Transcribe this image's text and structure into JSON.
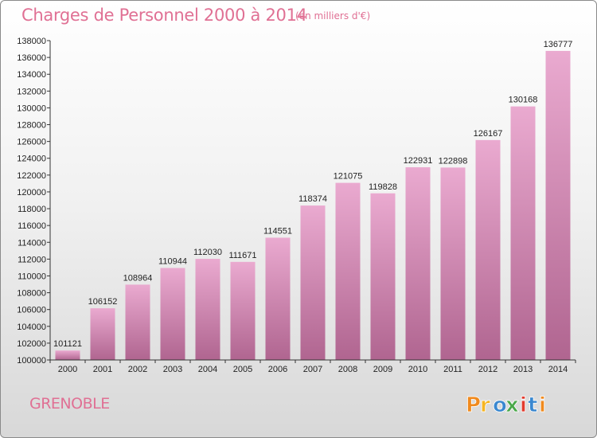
{
  "title": "Charges de Personnel 2000 à 2014",
  "subtitle": "(en milliers d'€)",
  "city": "GRENOBLE",
  "logo_text": "Proxiti",
  "colors": {
    "title": "#e07094",
    "bar_top": "#eaaad0",
    "bar_bottom": "#b06590",
    "logo_letters": [
      "#f08a1e",
      "#f5b521",
      "#3a88d0",
      "#4aa84a",
      "#e23b2e",
      "#3a88d0",
      "#f08a1e"
    ]
  },
  "chart_data": {
    "type": "bar",
    "categories": [
      "2000",
      "2001",
      "2002",
      "2003",
      "2004",
      "2005",
      "2006",
      "2007",
      "2008",
      "2009",
      "2010",
      "2011",
      "2012",
      "2013",
      "2014"
    ],
    "values": [
      101121,
      106152,
      108964,
      110944,
      112030,
      111671,
      114551,
      118374,
      121075,
      119828,
      122931,
      122898,
      126167,
      130168,
      136777
    ],
    "data_labels": [
      "101121",
      "106152",
      "108964",
      "110944",
      "112030",
      "111671",
      "114551",
      "118374",
      "121075",
      "119828",
      "122931",
      "122898",
      "126167",
      "130168",
      "136777"
    ],
    "ylim": [
      100000,
      138000
    ],
    "yticks": [
      "100000",
      "102000",
      "104000",
      "106000",
      "108000",
      "110000",
      "112000",
      "114000",
      "116000",
      "118000",
      "120000",
      "122000",
      "124000",
      "126000",
      "128000",
      "130000",
      "132000",
      "134000",
      "136000",
      "138000"
    ],
    "grid": false,
    "legend": "none"
  }
}
